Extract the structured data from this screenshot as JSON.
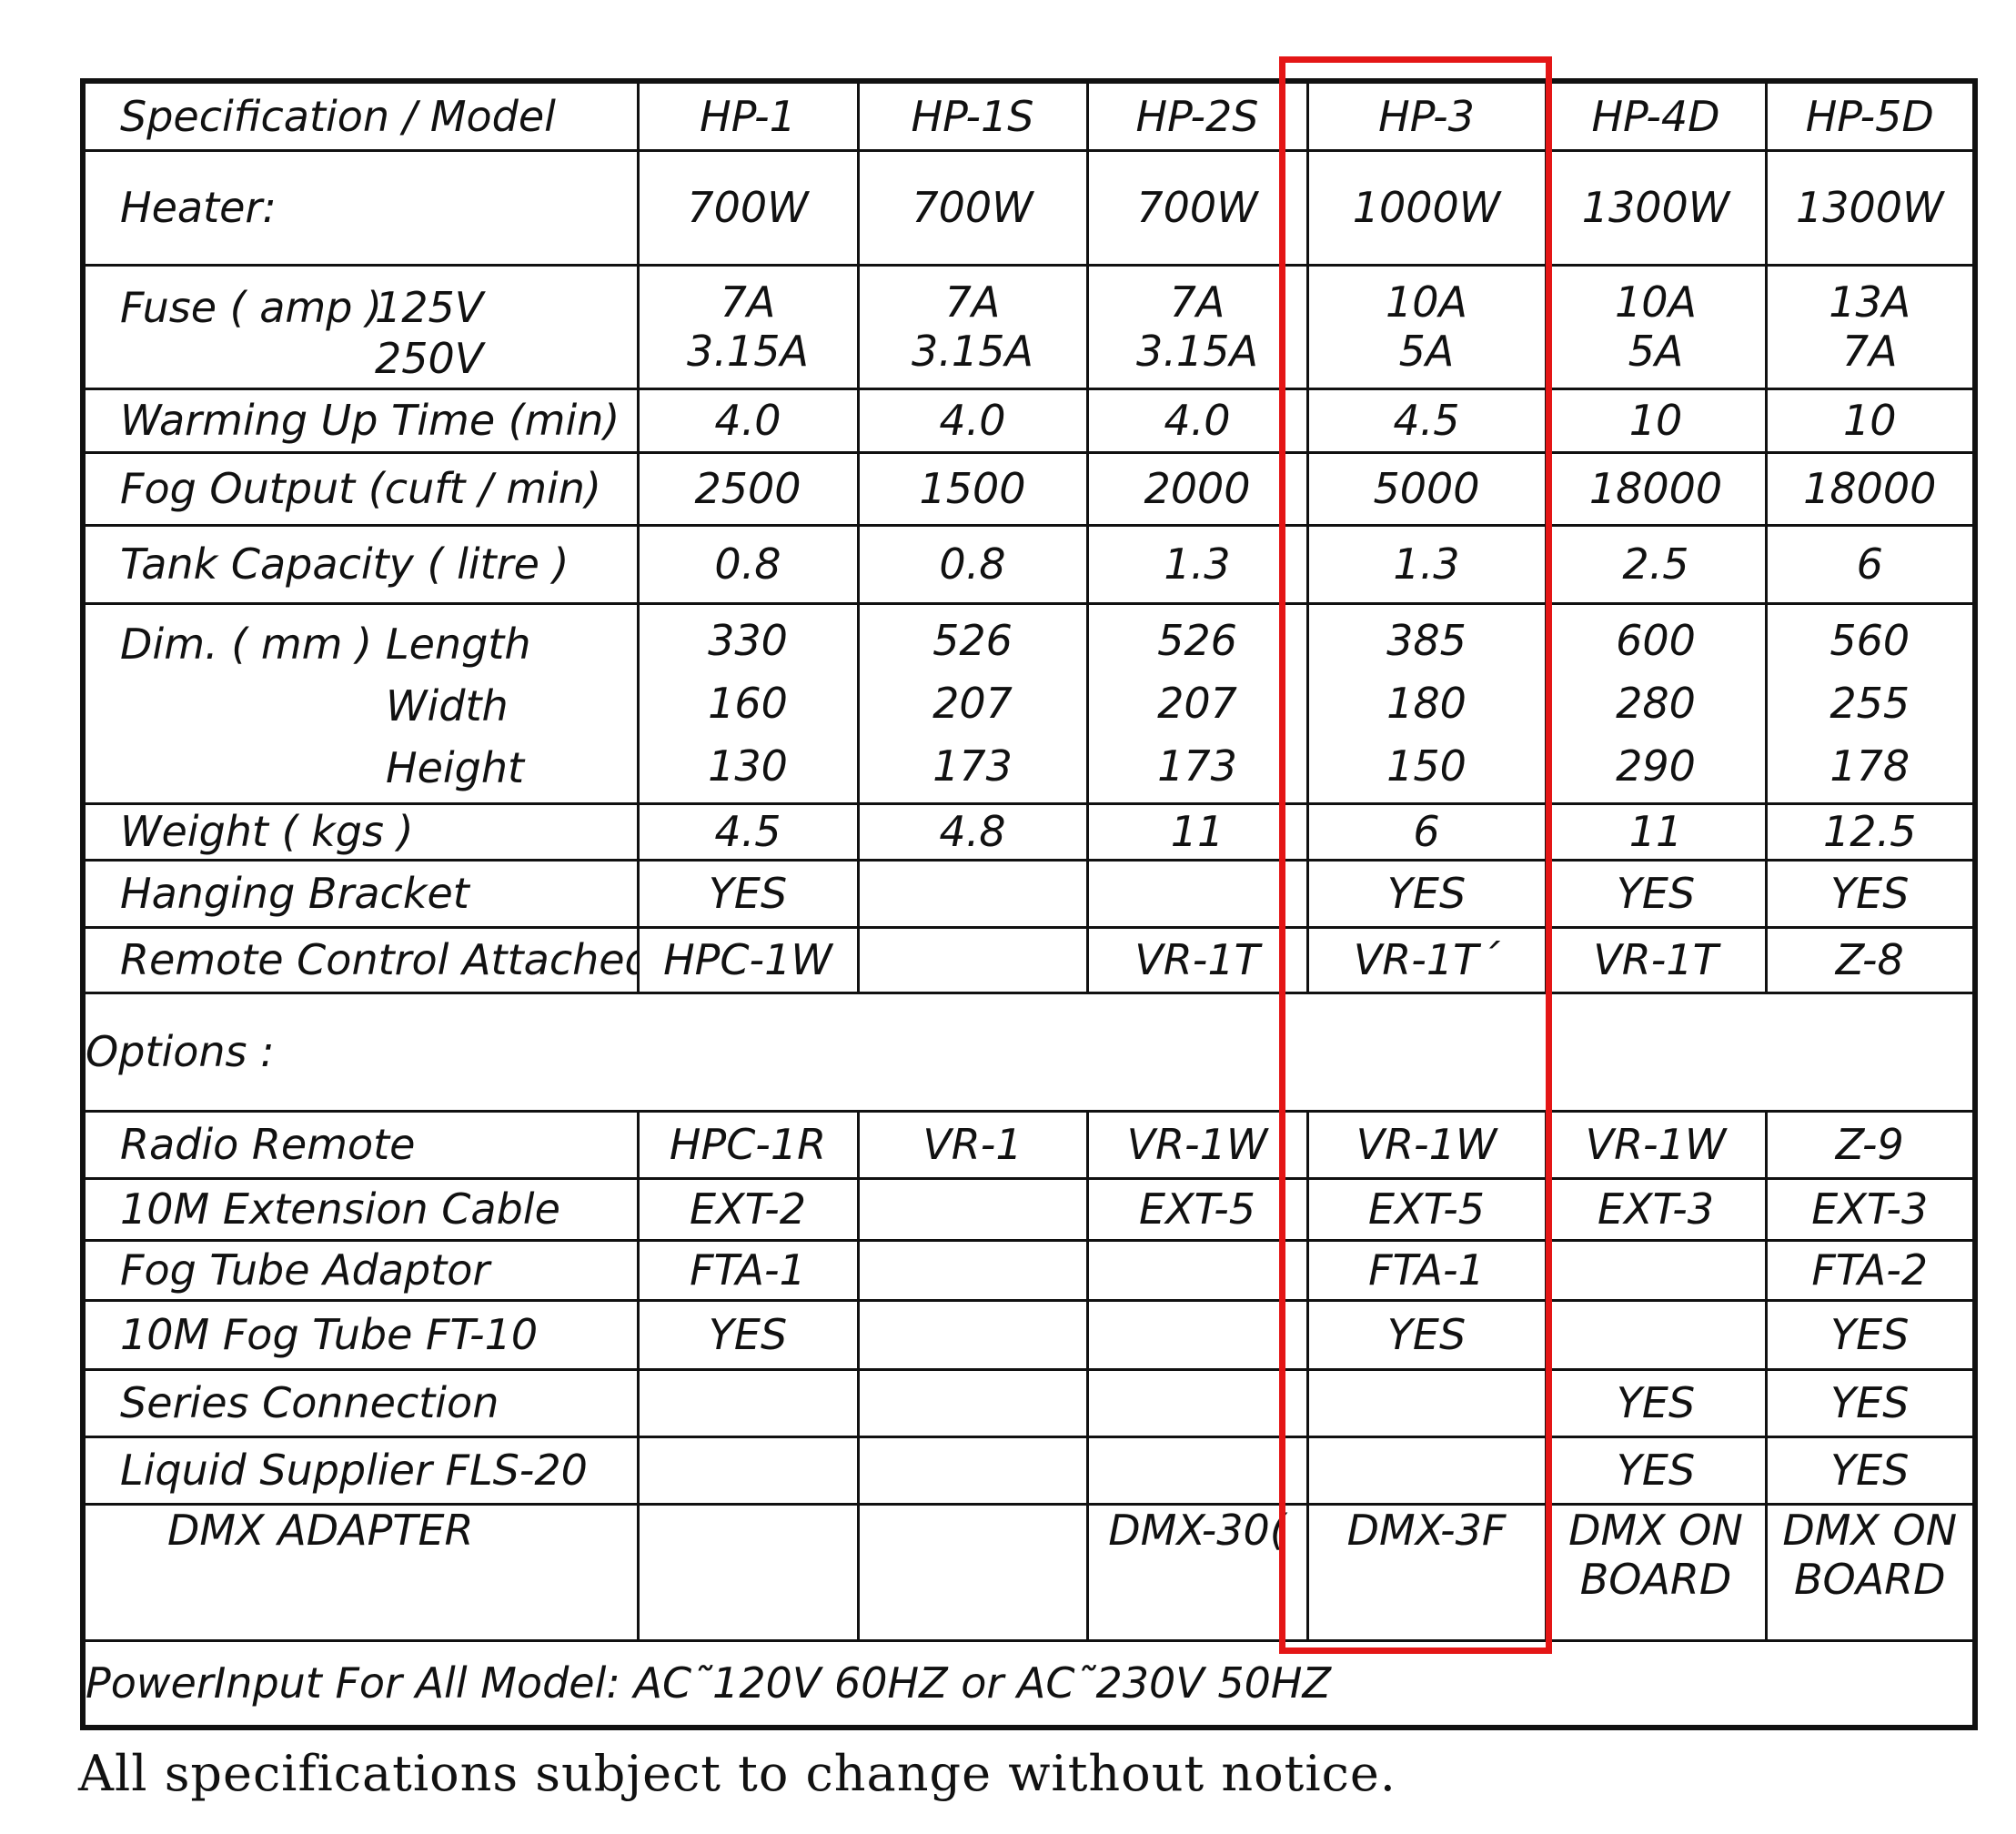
{
  "header": {
    "spec_label": "Specification / Model",
    "models": [
      "HP-1",
      "HP-1S",
      "HP-2S",
      "HP-3",
      "HP-4D",
      "HP-5D"
    ]
  },
  "rows": {
    "heater": {
      "label": "Heater:",
      "values": [
        "700W",
        "700W",
        "700W",
        "1000W",
        "1300W",
        "1300W"
      ]
    },
    "fuse": {
      "label": "Fuse  ( amp )",
      "v125": "125V",
      "v250": "250V",
      "values_125": [
        "7A",
        "7A",
        "7A",
        "10A",
        "10A",
        "13A"
      ],
      "values_250": [
        "3.15A",
        "3.15A",
        "3.15A",
        "5A",
        "5A",
        "7A"
      ]
    },
    "warming": {
      "label": "Warming Up Time (min)",
      "values": [
        "4.0",
        "4.0",
        "4.0",
        "4.5",
        "10",
        "10"
      ]
    },
    "fog_output": {
      "label": "Fog Output (cuft / min)",
      "values": [
        "2500",
        "1500",
        "2000",
        "5000",
        "18000",
        "18000"
      ]
    },
    "tank": {
      "label": "Tank Capacity ( litre )",
      "values": [
        "0.8",
        "0.8",
        "1.3",
        "1.3",
        "2.5",
        "6"
      ]
    },
    "dim": {
      "label": "Dim. ( mm )",
      "length_label": "Length",
      "width_label": "Width",
      "height_label": "Height",
      "length": [
        "330",
        "526",
        "526",
        "385",
        "600",
        "560"
      ],
      "width": [
        "160",
        "207",
        "207",
        "180",
        "280",
        "255"
      ],
      "height": [
        "130",
        "173",
        "173",
        "150",
        "290",
        "178"
      ]
    },
    "weight": {
      "label": "Weight ( kgs )",
      "values": [
        "4.5",
        "4.8",
        "11",
        "6",
        "11",
        "12.5"
      ]
    },
    "bracket": {
      "label": "Hanging  Bracket",
      "values": [
        "YES",
        "",
        "",
        "YES",
        "YES",
        "YES"
      ]
    },
    "remote": {
      "label": "Remote Control Attached",
      "values": [
        "HPC-1W",
        "",
        "VR-1T",
        "VR-1T´",
        "VR-1T",
        "Z-8"
      ]
    }
  },
  "options": {
    "heading": "Options :",
    "radio": {
      "label": "Radio Remote",
      "values": [
        "HPC-1R",
        "VR-1",
        "VR-1W",
        "VR-1W",
        "VR-1W",
        "Z-9"
      ]
    },
    "ext_cable": {
      "label": "10M Extension Cable",
      "values": [
        "EXT-2",
        "",
        "EXT-5",
        "EXT-5",
        "EXT-3",
        "EXT-3"
      ]
    },
    "adaptor": {
      "label": "Fog Tube Adaptor",
      "values": [
        "FTA-1",
        "",
        "",
        "FTA-1",
        "",
        "FTA-2"
      ]
    },
    "fog_tube": {
      "label": "10M Fog Tube FT-10",
      "values": [
        "YES",
        "",
        "",
        "YES",
        "",
        "YES"
      ]
    },
    "series": {
      "label": "Series Connection",
      "values": [
        "",
        "",
        "",
        "",
        "YES",
        "YES"
      ]
    },
    "liquid": {
      "label": "Liquid Supplier FLS-20",
      "values": [
        "",
        "",
        "",
        "",
        "YES",
        "YES"
      ]
    },
    "dmx": {
      "label": "DMX ADAPTER",
      "values_line1": [
        "",
        "",
        "DMX-30(",
        "DMX-3F",
        "DMX ON",
        "DMX ON"
      ],
      "values_line2": [
        "",
        "",
        "",
        "",
        "BOARD",
        "BOARD"
      ]
    }
  },
  "power_input": "PowerInput For All Model: AC˜120V   60HZ or AC˜230V    50HZ",
  "footnote": "All specifications subject to change without notice.",
  "highlight": {
    "color": "#e41616",
    "model": "HP-3"
  }
}
